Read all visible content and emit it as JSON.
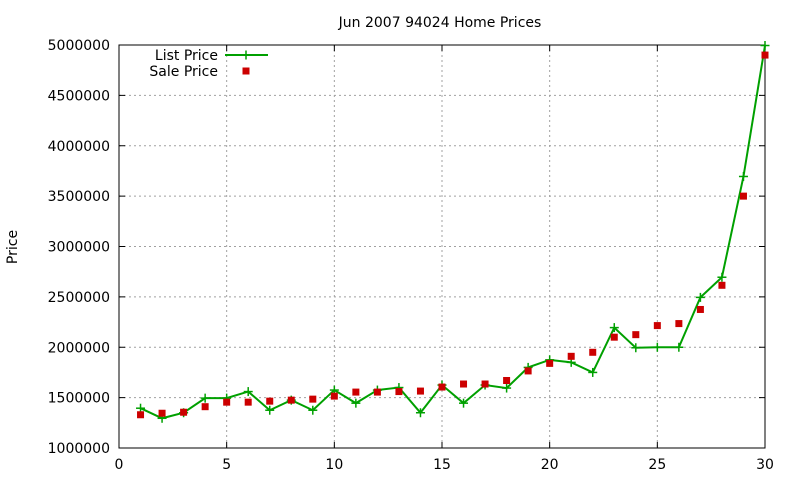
{
  "chart_data": {
    "type": "line",
    "title": "Jun 2007 94024 Home Prices",
    "xlabel": "",
    "ylabel": "Price",
    "xlim": [
      0,
      30
    ],
    "ylim": [
      1000000,
      5000000
    ],
    "xticks": [
      0,
      5,
      10,
      15,
      20,
      25,
      30
    ],
    "yticks": [
      1000000,
      1500000,
      2000000,
      2500000,
      3000000,
      3500000,
      4000000,
      4500000,
      5000000
    ],
    "grid": true,
    "legend_position": "top-left",
    "series": [
      {
        "name": "List Price",
        "style": "line+cross",
        "color": "#00a000",
        "x": [
          1,
          2,
          3,
          4,
          5,
          6,
          7,
          8,
          9,
          10,
          11,
          12,
          13,
          14,
          15,
          16,
          17,
          18,
          19,
          20,
          21,
          22,
          23,
          24,
          25,
          26,
          27,
          28,
          29,
          30
        ],
        "values": [
          1395000,
          1295000,
          1350000,
          1495000,
          1495000,
          1560000,
          1375000,
          1475000,
          1375000,
          1575000,
          1445000,
          1575000,
          1600000,
          1350000,
          1625000,
          1445000,
          1625000,
          1595000,
          1800000,
          1875000,
          1850000,
          1750000,
          2195000,
          1995000,
          2000000,
          2000000,
          2495000,
          2695000,
          3695000,
          4995000
        ]
      },
      {
        "name": "Sale Price",
        "style": "square",
        "color": "#cc0000",
        "x": [
          1,
          2,
          3,
          4,
          5,
          6,
          7,
          8,
          9,
          10,
          11,
          12,
          13,
          14,
          15,
          16,
          17,
          18,
          19,
          20,
          21,
          22,
          23,
          24,
          25,
          26,
          27,
          28,
          29,
          30
        ],
        "values": [
          1330000,
          1345000,
          1355000,
          1410000,
          1455000,
          1455000,
          1465000,
          1475000,
          1485000,
          1515000,
          1555000,
          1555000,
          1560000,
          1565000,
          1605000,
          1635000,
          1635000,
          1670000,
          1765000,
          1840000,
          1910000,
          1950000,
          2100000,
          2125000,
          2215000,
          2235000,
          2375000,
          2615000,
          3500000,
          4900000
        ]
      }
    ]
  }
}
